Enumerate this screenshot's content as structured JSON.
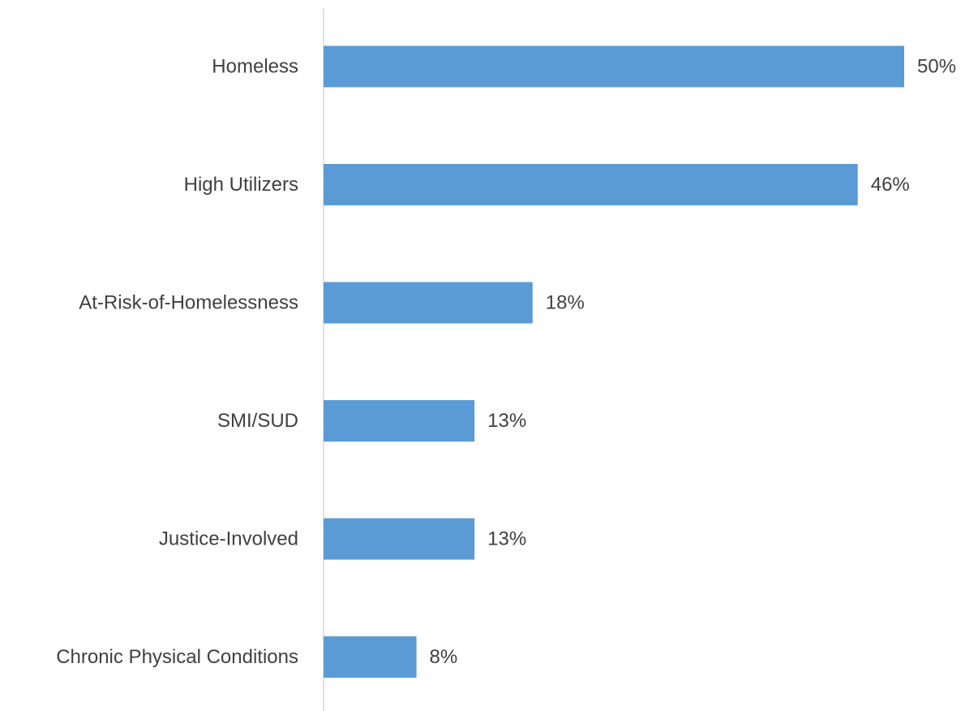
{
  "chart_data": {
    "type": "bar",
    "orientation": "horizontal",
    "categories": [
      "Homeless",
      "High Utilizers",
      "At-Risk-of-Homelessness",
      "SMI/SUD",
      "Justice-Involved",
      "Chronic Physical Conditions"
    ],
    "values": [
      50,
      46,
      18,
      13,
      13,
      8
    ],
    "value_labels": [
      "50%",
      "46%",
      "18%",
      "13%",
      "13%",
      "8%"
    ],
    "unit": "%",
    "xlim": [
      0,
      50
    ],
    "grid": false,
    "legend": "none",
    "colors": {
      "bar": "#5b9bd5",
      "axis": "#d9d9d9",
      "text": "#404040"
    }
  }
}
